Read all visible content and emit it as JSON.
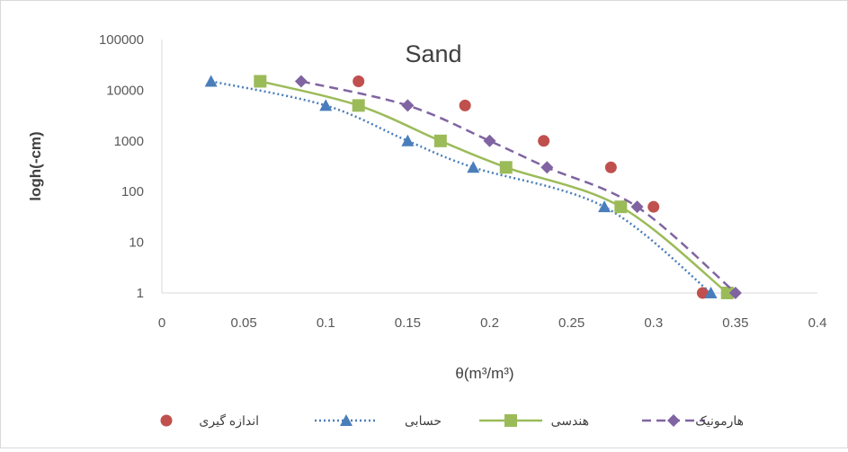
{
  "chart_data": {
    "type": "line",
    "title": "Sand",
    "xlabel": "θ(m³/m³)",
    "ylabel": "logh(-cm)",
    "xlim": [
      0,
      0.4
    ],
    "ylim": [
      1,
      100000
    ],
    "yscale": "log",
    "grid": false,
    "legend_position": "bottom",
    "x_ticks": [
      "0",
      "0.05",
      "0.1",
      "0.15",
      "0.2",
      "0.25",
      "0.3",
      "0.35",
      "0.4"
    ],
    "y_ticks": [
      "1",
      "10",
      "100",
      "1000",
      "10000",
      "100000"
    ],
    "series": [
      {
        "name": "اندازه گیری",
        "style": "markers",
        "marker": "circle",
        "color": "#c0504d",
        "points": [
          [
            0.12,
            15000
          ],
          [
            0.185,
            5000
          ],
          [
            0.233,
            1000
          ],
          [
            0.274,
            300
          ],
          [
            0.3,
            50
          ],
          [
            0.33,
            1
          ]
        ]
      },
      {
        "name": "حسابی",
        "style": "dotted",
        "marker": "triangle",
        "color": "#4a7ebb",
        "points": [
          [
            0.03,
            15000
          ],
          [
            0.1,
            5000
          ],
          [
            0.15,
            1000
          ],
          [
            0.19,
            300
          ],
          [
            0.27,
            50
          ],
          [
            0.335,
            1
          ]
        ]
      },
      {
        "name": "هندسی",
        "style": "solid",
        "marker": "square",
        "color": "#9bbb59",
        "points": [
          [
            0.06,
            15000
          ],
          [
            0.12,
            5000
          ],
          [
            0.17,
            1000
          ],
          [
            0.21,
            300
          ],
          [
            0.28,
            50
          ],
          [
            0.345,
            1
          ]
        ]
      },
      {
        "name": "هارمونیک",
        "style": "dashed",
        "marker": "diamond",
        "color": "#8064a2",
        "points": [
          [
            0.085,
            15000
          ],
          [
            0.15,
            5000
          ],
          [
            0.2,
            1000
          ],
          [
            0.235,
            300
          ],
          [
            0.29,
            50
          ],
          [
            0.35,
            1
          ]
        ]
      }
    ]
  }
}
